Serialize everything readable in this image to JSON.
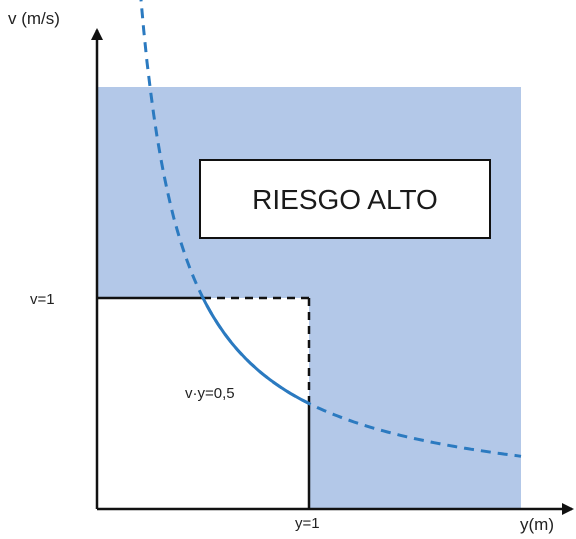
{
  "chart_data": {
    "type": "line",
    "xlabel": "y(m)",
    "ylabel": "v (m/s)",
    "xlim": [
      0,
      2.0
    ],
    "ylim": [
      0,
      2.0
    ],
    "colors": {
      "risk_area": "#b3c8e8",
      "curve": "#2b7ac0",
      "axes": "#111111",
      "box_border": "#111111"
    },
    "curve": {
      "equation": "v·y = 0.5",
      "k": 0.5,
      "x_range": [
        0.11,
        2.0
      ],
      "style": "dashed",
      "solid_segment_x": [
        0.5,
        1.0
      ]
    },
    "risk_region_label": "RIESGO ALTO",
    "curve_label": "v·y=0,5",
    "x_tick": {
      "value": 1,
      "label": "y=1"
    },
    "y_tick": {
      "value": 1,
      "label": "v=1"
    },
    "grid": false,
    "legend": "none"
  }
}
